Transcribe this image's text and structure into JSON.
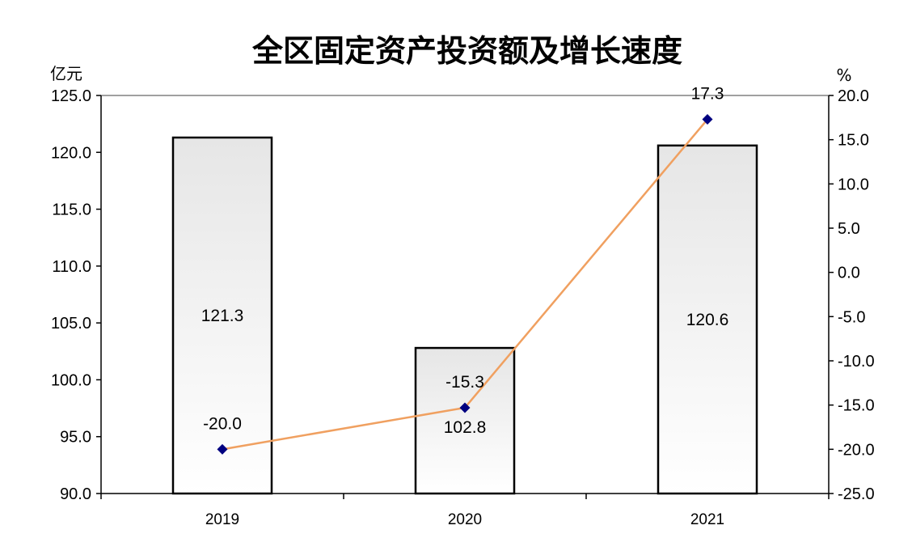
{
  "chart_data": {
    "type": "bar+line",
    "title": "全区固定资产投资额及增长速度",
    "categories": [
      "2019",
      "2020",
      "2021"
    ],
    "left_axis": {
      "unit": "亿元",
      "ylim": [
        90.0,
        125.0
      ],
      "ticks": [
        "90.0",
        "95.0",
        "100.0",
        "105.0",
        "110.0",
        "115.0",
        "120.0",
        "125.0"
      ]
    },
    "right_axis": {
      "unit": "%",
      "ylim": [
        -25.0,
        20.0
      ],
      "ticks": [
        "-25.0",
        "-20.0",
        "-15.0",
        "-10.0",
        "-5.0",
        "0.0",
        "5.0",
        "10.0",
        "15.0",
        "20.0"
      ]
    },
    "series": [
      {
        "name": "固定资产投资额",
        "type": "bar",
        "axis": "left",
        "values": [
          121.3,
          102.8,
          120.6
        ],
        "labels": [
          "121.3",
          "102.8",
          "120.6"
        ]
      },
      {
        "name": "增长速度",
        "type": "line",
        "axis": "right",
        "values": [
          -20.0,
          -15.3,
          17.3
        ],
        "labels": [
          "-20.0",
          "-15.3",
          "17.3"
        ]
      }
    ],
    "colors": {
      "line": "#F0A060",
      "marker": "#000080",
      "bar_top": "#E6E6E6",
      "bar_bottom": "#FFFFFF"
    }
  }
}
